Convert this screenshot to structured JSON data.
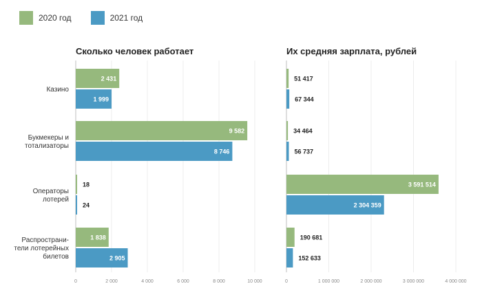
{
  "legend": [
    {
      "label": "2020 год",
      "color": "#96b97d"
    },
    {
      "label": "2021 год",
      "color": "#4b9ac4"
    }
  ],
  "chart_data": [
    {
      "type": "bar",
      "orientation": "horizontal",
      "title": "Сколько человек работает",
      "categories": [
        "Казино",
        "Букмекеры и\nтотализаторы",
        "Операторы\nлотерей",
        "Распространи-\nтели лотерейных\nбилетов"
      ],
      "series": [
        {
          "name": "2020 год",
          "color": "#96b97d",
          "values": [
            2431,
            9582,
            18,
            1838
          ],
          "labels": [
            "2 431",
            "9 582",
            "18",
            "1 838"
          ]
        },
        {
          "name": "2021 год",
          "color": "#4b9ac4",
          "values": [
            1999,
            8746,
            24,
            2905
          ],
          "labels": [
            "1 999",
            "8 746",
            "24",
            "2 905"
          ]
        }
      ],
      "xlim": [
        0,
        10000
      ],
      "xticks": [
        0,
        2000,
        4000,
        6000,
        8000,
        10000
      ],
      "xtick_labels": [
        "0",
        "2 000",
        "4 000",
        "6 000",
        "8 000",
        "10 000"
      ],
      "grid": true
    },
    {
      "type": "bar",
      "orientation": "horizontal",
      "title": "Их средняя зарплата, рублей",
      "categories": [
        "Казино",
        "Букмекеры и\nтотализаторы",
        "Операторы\nлотерей",
        "Распространи-\nтели лотерейных\nбилетов"
      ],
      "series": [
        {
          "name": "2020 год",
          "color": "#96b97d",
          "values": [
            51417,
            34464,
            3591514,
            190681
          ],
          "labels": [
            "51 417",
            "34 464",
            "3 591 514",
            "190 681"
          ]
        },
        {
          "name": "2021 год",
          "color": "#4b9ac4",
          "values": [
            67344,
            56737,
            2304359,
            152633
          ],
          "labels": [
            "67 344",
            "56 737",
            "2 304 359",
            "152 633"
          ]
        }
      ],
      "xlim": [
        0,
        4000000
      ],
      "xticks": [
        0,
        1000000,
        2000000,
        3000000,
        4000000
      ],
      "xtick_labels": [
        "0",
        "1 000 000",
        "2 000 000",
        "3 000 000",
        "4 000 000"
      ],
      "grid": true
    }
  ]
}
